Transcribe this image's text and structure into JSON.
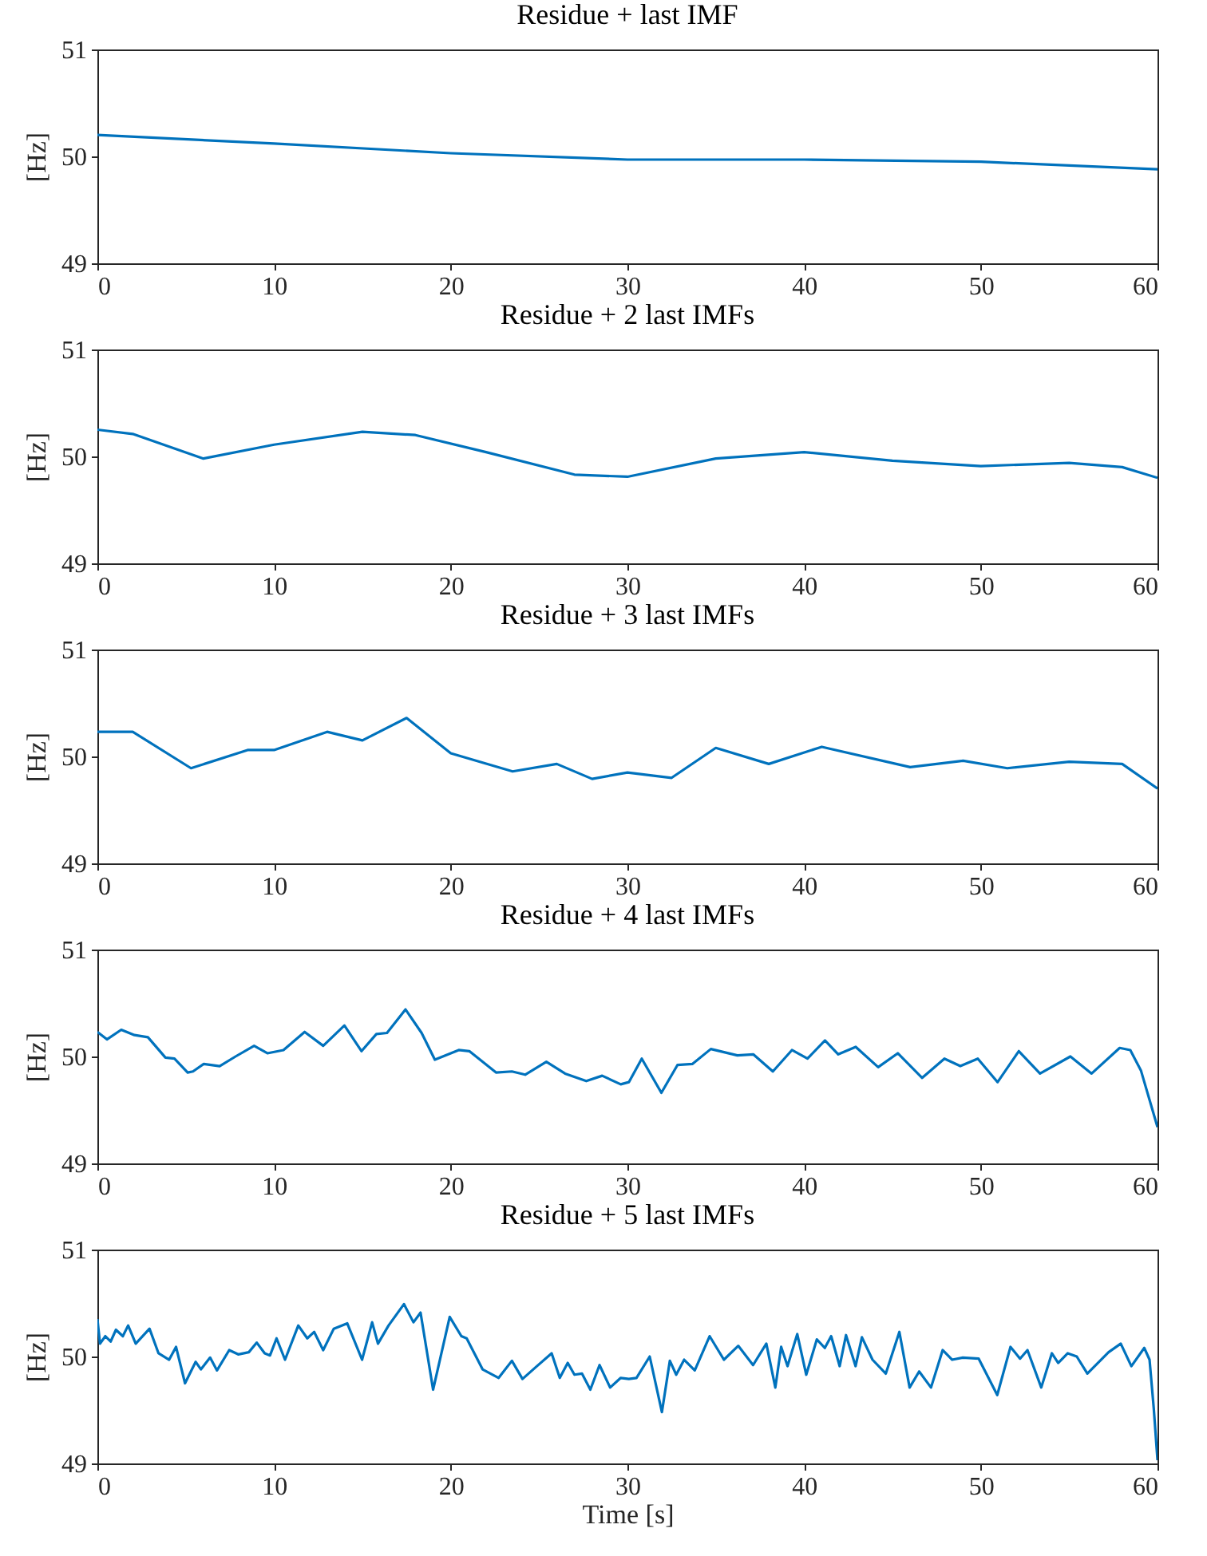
{
  "chart_data": [
    {
      "type": "line",
      "title": "Residue + last IMF",
      "ylabel": "[Hz]",
      "xlim": [
        0,
        60
      ],
      "xticks": [
        0,
        10,
        20,
        30,
        40,
        50,
        60
      ],
      "ylim": [
        49,
        51
      ],
      "yticks": [
        49,
        50,
        51
      ],
      "grid": false,
      "series": [
        {
          "color": "#0072bd",
          "x": [
            0,
            10,
            20,
            30,
            40,
            50,
            60
          ],
          "values": [
            50.2,
            50.12,
            50.03,
            49.97,
            49.97,
            49.95,
            49.88
          ]
        }
      ]
    },
    {
      "type": "line",
      "title": "Residue + 2 last IMFs",
      "ylabel": "[Hz]",
      "xlim": [
        0,
        60
      ],
      "xticks": [
        0,
        10,
        20,
        30,
        40,
        50,
        60
      ],
      "ylim": [
        49,
        51
      ],
      "yticks": [
        49,
        50,
        51
      ],
      "grid": false,
      "series": [
        {
          "color": "#0072bd",
          "x": [
            0,
            2,
            6,
            10,
            15,
            18,
            22,
            27,
            30,
            35,
            40,
            45,
            50,
            55,
            58,
            60
          ],
          "values": [
            50.25,
            50.21,
            49.98,
            50.11,
            50.23,
            50.2,
            50.04,
            49.83,
            49.81,
            49.98,
            50.04,
            49.96,
            49.91,
            49.94,
            49.9,
            49.8
          ]
        }
      ]
    },
    {
      "type": "line",
      "title": "Residue + 3 last IMFs",
      "ylabel": "[Hz]",
      "xlim": [
        0,
        60
      ],
      "xticks": [
        0,
        10,
        20,
        30,
        40,
        50,
        60
      ],
      "ylim": [
        49,
        51
      ],
      "yticks": [
        49,
        50,
        51
      ],
      "grid": false,
      "series": [
        {
          "color": "#0072bd",
          "x": [
            0,
            2,
            5.3,
            8.5,
            10,
            13,
            15,
            17.5,
            20,
            23.5,
            26,
            28,
            30,
            32.5,
            35,
            38,
            41,
            46,
            49,
            51.5,
            55,
            58,
            60
          ],
          "values": [
            50.23,
            50.23,
            49.89,
            50.06,
            50.06,
            50.23,
            50.15,
            50.36,
            50.03,
            49.86,
            49.93,
            49.79,
            49.85,
            49.8,
            50.08,
            49.93,
            50.09,
            49.9,
            49.96,
            49.89,
            49.95,
            49.93,
            49.7
          ]
        }
      ]
    },
    {
      "type": "line",
      "title": "Residue + 4 last IMFs",
      "ylabel": "[Hz]",
      "xlim": [
        0,
        60
      ],
      "xticks": [
        0,
        10,
        20,
        30,
        40,
        50,
        60
      ],
      "ylim": [
        49,
        51
      ],
      "yticks": [
        49,
        50,
        51
      ],
      "grid": false,
      "series": [
        {
          "color": "#0072bd",
          "x": [
            0,
            0.54,
            1.35,
            2.1,
            2.86,
            3.85,
            4.36,
            5.11,
            5.41,
            6.02,
            6.92,
            7.82,
            8.87,
            9.62,
            10.53,
            11.73,
            12.78,
            13.98,
            14.95,
            15.79,
            16.39,
            17.44,
            18.35,
            19.1,
            20.45,
            21.05,
            22.56,
            23.46,
            24.21,
            25.41,
            26.47,
            27.67,
            28.57,
            29.62,
            30.08,
            30.81,
            31.92,
            32.83,
            33.67,
            34.72,
            36.22,
            37.12,
            38.23,
            39.31,
            40.19,
            41.18,
            41.93,
            42.92,
            44.19,
            45.3,
            46.68,
            47.94,
            48.84,
            49.83,
            50.95,
            52.15,
            53.35,
            55.07,
            56.27,
            57.86,
            58.46,
            59.06,
            60
          ],
          "values": [
            50.23,
            50.16,
            50.25,
            50.2,
            50.18,
            49.99,
            49.98,
            49.85,
            49.86,
            49.93,
            49.91,
            50.0,
            50.1,
            50.03,
            50.06,
            50.23,
            50.1,
            50.29,
            50.05,
            50.21,
            50.22,
            50.44,
            50.22,
            49.97,
            50.06,
            50.05,
            49.85,
            49.86,
            49.83,
            49.95,
            49.84,
            49.77,
            49.82,
            49.74,
            49.76,
            49.98,
            49.66,
            49.92,
            49.93,
            50.07,
            50.01,
            50.02,
            49.86,
            50.06,
            49.98,
            50.15,
            50.02,
            50.09,
            49.9,
            50.03,
            49.8,
            49.98,
            49.91,
            49.98,
            49.76,
            50.05,
            49.84,
            50.0,
            49.84,
            50.08,
            50.06,
            49.87,
            49.34
          ]
        }
      ]
    },
    {
      "type": "line",
      "title": "Residue + 5 last IMFs",
      "xlabel": "Time [s]",
      "ylabel": "[Hz]",
      "xlim": [
        0,
        60
      ],
      "xticks": [
        0,
        10,
        20,
        30,
        40,
        50,
        60
      ],
      "ylim": [
        49,
        51
      ],
      "yticks": [
        49,
        50,
        51
      ],
      "grid": false,
      "series": [
        {
          "color": "#0072bd",
          "x": [
            0,
            0.15,
            0.45,
            0.75,
            1.05,
            1.44,
            1.74,
            2.17,
            2.95,
            3.46,
            4.06,
            4.45,
            4.96,
            5.56,
            5.86,
            6.38,
            6.77,
            7.46,
            7.97,
            8.57,
            9.02,
            9.47,
            9.77,
            10.14,
            10.62,
            11.37,
            11.88,
            12.27,
            12.78,
            13.38,
            14.14,
            14.98,
            15.55,
            15.88,
            16.48,
            17.35,
            17.89,
            18.29,
            19.0,
            19.94,
            20.6,
            20.9,
            21.8,
            22.71,
            23.46,
            24.06,
            24.81,
            25.71,
            26.17,
            26.62,
            27.0,
            27.43,
            27.9,
            28.42,
            29.02,
            29.62,
            30.08,
            30.51,
            31.26,
            31.95,
            32.4,
            32.76,
            33.21,
            33.81,
            34.65,
            35.46,
            36.27,
            37.11,
            37.86,
            38.37,
            38.7,
            39.06,
            39.61,
            40.12,
            40.72,
            41.17,
            41.53,
            42.01,
            42.37,
            42.91,
            43.27,
            43.87,
            44.62,
            45.39,
            45.97,
            46.51,
            47.18,
            47.84,
            48.38,
            48.98,
            49.88,
            50.93,
            51.68,
            52.22,
            52.64,
            53.42,
            54.02,
            54.38,
            54.92,
            55.43,
            56.03,
            57.23,
            57.92,
            58.52,
            59.25,
            59.55,
            59.79,
            60
          ],
          "values": [
            50.35,
            50.12,
            50.19,
            50.14,
            50.25,
            50.19,
            50.29,
            50.12,
            50.26,
            50.03,
            49.97,
            50.09,
            49.75,
            49.95,
            49.88,
            49.99,
            49.87,
            50.06,
            50.02,
            50.04,
            50.13,
            50.03,
            50.01,
            50.17,
            49.97,
            50.29,
            50.17,
            50.23,
            50.06,
            50.26,
            50.31,
            49.97,
            50.32,
            50.12,
            50.29,
            50.49,
            50.32,
            50.41,
            49.69,
            50.37,
            50.19,
            50.17,
            49.88,
            49.8,
            49.96,
            49.79,
            49.9,
            50.03,
            49.8,
            49.94,
            49.83,
            49.84,
            49.69,
            49.92,
            49.71,
            49.8,
            49.79,
            49.8,
            50.0,
            49.48,
            49.96,
            49.83,
            49.97,
            49.87,
            50.19,
            49.97,
            50.1,
            49.92,
            50.12,
            49.71,
            50.09,
            49.91,
            50.21,
            49.83,
            50.16,
            50.08,
            50.19,
            49.91,
            50.2,
            49.91,
            50.18,
            49.97,
            49.84,
            50.23,
            49.71,
            49.86,
            49.71,
            50.06,
            49.97,
            49.99,
            49.98,
            49.64,
            50.09,
            49.98,
            50.06,
            49.71,
            50.03,
            49.94,
            50.03,
            50.0,
            49.84,
            50.04,
            50.12,
            49.91,
            50.08,
            49.97,
            49.51,
            49.03
          ]
        }
      ]
    }
  ]
}
